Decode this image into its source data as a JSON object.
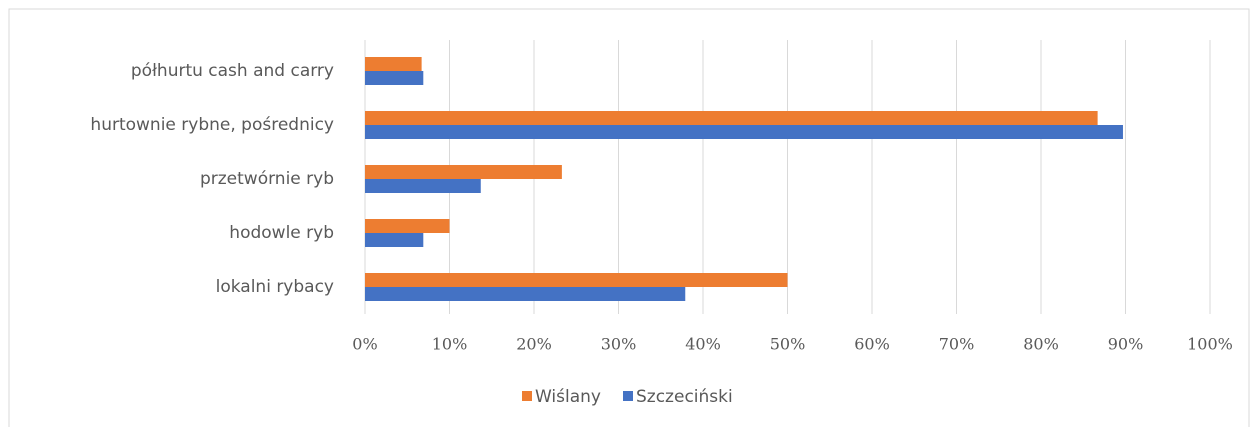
{
  "chart_data": {
    "type": "bar",
    "orientation": "horizontal",
    "categories": [
      "półhurtu cash and carry",
      "hurtownie rybne, pośrednicy",
      "przetwórnie ryb",
      "hodowle ryb",
      "lokalni rybacy"
    ],
    "series": [
      {
        "name": "Wiślany",
        "color": "#ed7d31",
        "values": [
          6.7,
          86.7,
          23.3,
          10,
          50
        ]
      },
      {
        "name": "Szczeciński",
        "color": "#4472c4",
        "values": [
          6.9,
          89.7,
          13.7,
          6.9,
          37.9
        ]
      }
    ],
    "xlim": [
      0,
      100
    ],
    "xticks": [
      {
        "value": 0,
        "label": "0%"
      },
      {
        "value": 10,
        "label": "10%"
      },
      {
        "value": 20,
        "label": "20%"
      },
      {
        "value": 30,
        "label": "30%"
      },
      {
        "value": 40,
        "label": "40%"
      },
      {
        "value": 50,
        "label": "50%"
      },
      {
        "value": 60,
        "label": "60%"
      },
      {
        "value": 70,
        "label": "70%"
      },
      {
        "value": 80,
        "label": "80%"
      },
      {
        "value": 90,
        "label": "90%"
      },
      {
        "value": 100,
        "label": "100%"
      }
    ],
    "grid": true,
    "legend": "bottom"
  }
}
